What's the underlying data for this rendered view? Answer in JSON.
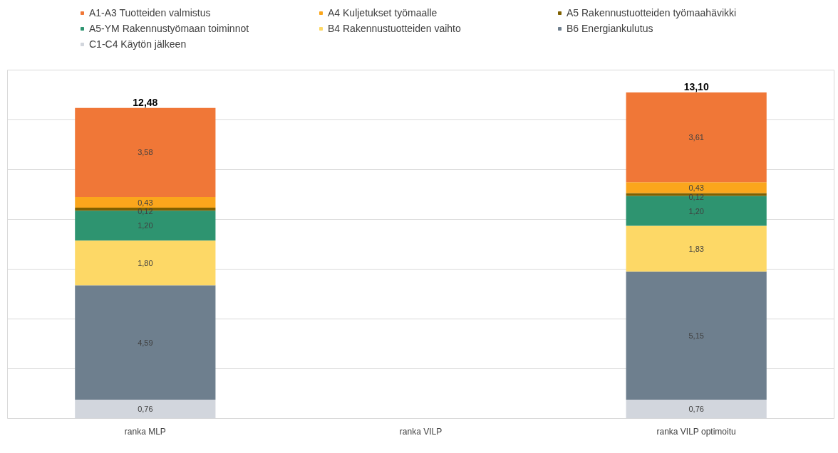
{
  "chart_data": {
    "type": "bar",
    "stacked": true,
    "categories": [
      "ranka MLP",
      "ranka VILP",
      "ranka VILP optimoitu"
    ],
    "series": [
      {
        "name": "C1-C4 Käytön jälkeen",
        "color": "#d2d6dd",
        "values": [
          0.76,
          null,
          0.76
        ],
        "value_labels": [
          "0,76",
          null,
          "0,76"
        ]
      },
      {
        "name": "B6 Energiankulutus",
        "color": "#6e7f8e",
        "values": [
          4.59,
          null,
          5.15
        ],
        "value_labels": [
          "4,59",
          null,
          "5,15"
        ]
      },
      {
        "name": "B4 Rakennustuotteiden vaihto",
        "color": "#fdd866",
        "values": [
          1.8,
          null,
          1.83
        ],
        "value_labels": [
          "1,80",
          null,
          "1,83"
        ]
      },
      {
        "name": "A5-YM Rakennustyömaan toiminnot",
        "color": "#2e9470",
        "values": [
          1.2,
          null,
          1.2
        ],
        "value_labels": [
          "1,20",
          null,
          "1,20"
        ]
      },
      {
        "name": "A5 Rakennustuotteiden työmaahävikki",
        "color": "#7f6000",
        "values": [
          0.12,
          null,
          0.12
        ],
        "value_labels": [
          "0,12",
          null,
          "0,12"
        ]
      },
      {
        "name": "A4 Kuljetukset työmaalle",
        "color": "#fba61c",
        "values": [
          0.43,
          null,
          0.43
        ],
        "value_labels": [
          "0,43",
          null,
          "0,43"
        ]
      },
      {
        "name": "A1-A3 Tuotteiden valmistus",
        "color": "#f07737",
        "values": [
          3.58,
          null,
          3.61
        ],
        "value_labels": [
          "3,58",
          null,
          "3,61"
        ]
      }
    ],
    "totals": [
      "12,48",
      null,
      "13,10"
    ],
    "ylim": [
      0,
      14
    ],
    "yticks": [
      {
        "value": 0,
        "label": null
      },
      {
        "value": 2,
        "label": null
      },
      {
        "value": 4,
        "label": null
      },
      {
        "value": 6,
        "label": null
      },
      {
        "value": 8,
        "label": null
      },
      {
        "value": 10,
        "label": null
      },
      {
        "value": 12,
        "label": null
      },
      {
        "value": 14,
        "label": null
      }
    ],
    "tick_labels": "x",
    "grid": "y",
    "legend": "top left"
  }
}
